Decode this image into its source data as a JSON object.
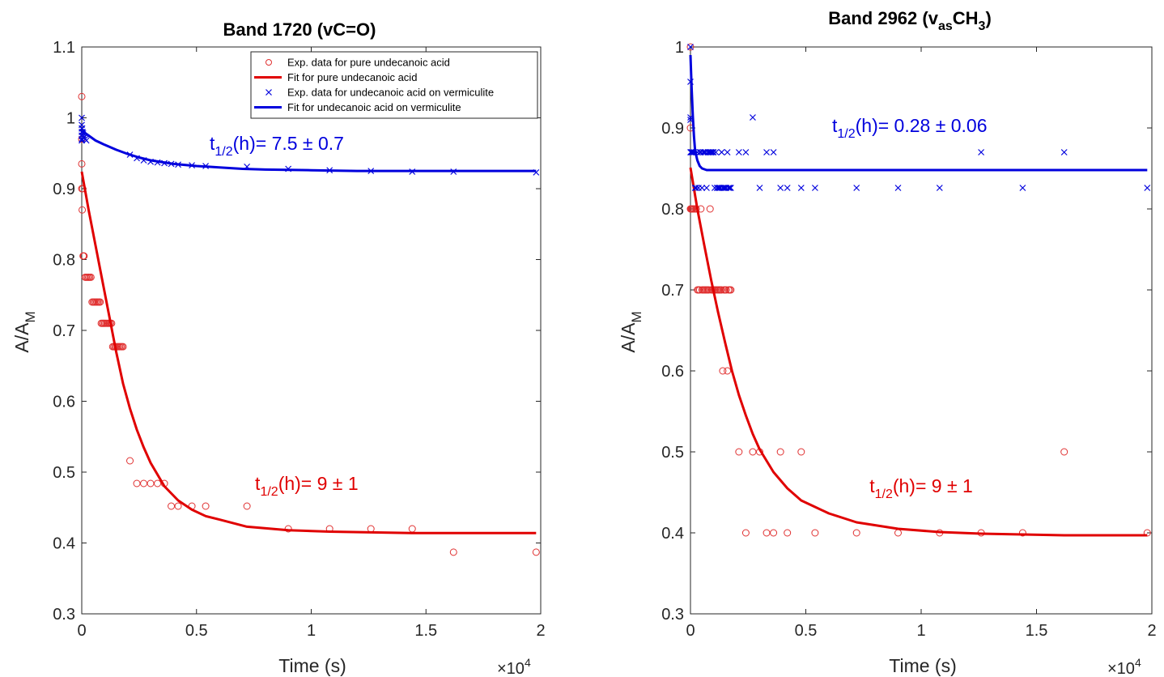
{
  "chart_data": [
    {
      "type": "scatter",
      "title": "Band 1720 (vC=O)",
      "xlabel": "Time (s)",
      "ylabel_main": "A/A",
      "ylabel_sub": "M",
      "x_exponent_label": "×10",
      "x_exponent": "4",
      "xlim": [
        0,
        20000
      ],
      "ylim": [
        0.3,
        1.1
      ],
      "xticks": [
        0,
        5000,
        10000,
        15000,
        20000
      ],
      "xtick_labels": [
        "0",
        "0.5",
        "1",
        "1.5",
        "2"
      ],
      "yticks": [
        0.3,
        0.4,
        0.5,
        0.6,
        0.7,
        0.8,
        0.9,
        1.0,
        1.1
      ],
      "ytick_labels": [
        "0.3",
        "0.4",
        "0.5",
        "0.6",
        "0.7",
        "0.8",
        "0.9",
        "1",
        "1.1"
      ],
      "grid": false,
      "legend_position": "top-right",
      "legend": [
        {
          "label": "Exp. data for pure undecanoic acid",
          "marker": "circle",
          "color": "#e03030"
        },
        {
          "label": "Fit for pure undecanoic acid",
          "marker": "line",
          "color": "#e00000"
        },
        {
          "label": "Exp. data for undecanoic acid on vermiculite",
          "marker": "cross",
          "color": "#0000dd"
        },
        {
          "label": "Fit for undecanoic acid on vermiculite",
          "marker": "line",
          "color": "#0000dd"
        }
      ],
      "series": [
        {
          "kind": "scatter-circle",
          "color": "#e03030",
          "x": [
            0,
            0,
            0,
            0,
            20,
            40,
            60,
            80,
            100,
            150,
            200,
            250,
            300,
            350,
            400,
            450,
            500,
            550,
            600,
            650,
            700,
            750,
            800,
            850,
            900,
            950,
            1000,
            1050,
            1100,
            1150,
            1200,
            1250,
            1300,
            1350,
            1400,
            1450,
            1500,
            1550,
            1600,
            1650,
            1700,
            1750,
            1800,
            2100,
            2400,
            2700,
            3000,
            3300,
            3600,
            3900,
            4200,
            4800,
            5400,
            7200,
            9000,
            10800,
            12600,
            14400,
            16200,
            19800
          ],
          "y": [
            1.03,
            0.97,
            0.935,
            0.9,
            0.87,
            0.9,
            0.805,
            0.805,
            0.805,
            0.775,
            0.775,
            0.775,
            0.775,
            0.775,
            0.775,
            0.74,
            0.74,
            0.74,
            0.74,
            0.74,
            0.74,
            0.74,
            0.74,
            0.71,
            0.71,
            0.71,
            0.71,
            0.71,
            0.71,
            0.71,
            0.71,
            0.71,
            0.71,
            0.677,
            0.677,
            0.677,
            0.677,
            0.677,
            0.677,
            0.677,
            0.677,
            0.677,
            0.677,
            0.516,
            0.484,
            0.484,
            0.484,
            0.484,
            0.484,
            0.452,
            0.452,
            0.452,
            0.452,
            0.452,
            0.42,
            0.42,
            0.42,
            0.42,
            0.387,
            0.387
          ]
        },
        {
          "kind": "line",
          "color": "#e00000",
          "x": [
            0,
            300,
            600,
            900,
            1200,
            1500,
            1800,
            2100,
            2400,
            2700,
            3000,
            3600,
            4200,
            4800,
            5400,
            6000,
            7200,
            9000,
            10800,
            12600,
            14400,
            16200,
            18000,
            19800
          ],
          "y": [
            0.924,
            0.87,
            0.82,
            0.77,
            0.72,
            0.67,
            0.625,
            0.59,
            0.56,
            0.535,
            0.513,
            0.48,
            0.46,
            0.447,
            0.438,
            0.433,
            0.423,
            0.418,
            0.416,
            0.415,
            0.414,
            0.414,
            0.414,
            0.414
          ]
        },
        {
          "kind": "scatter-cross",
          "color": "#0000dd",
          "x": [
            0,
            0,
            0,
            0,
            0,
            0,
            0,
            20,
            40,
            60,
            80,
            100,
            150,
            200,
            2100,
            2400,
            2700,
            3000,
            3300,
            3600,
            3900,
            4200,
            4800,
            5400,
            7200,
            9000,
            10800,
            12600,
            14400,
            16200,
            19800
          ],
          "y": [
            1.0,
            0.99,
            0.985,
            0.98,
            0.975,
            0.97,
            0.968,
            0.985,
            0.98,
            0.978,
            0.975,
            0.972,
            0.97,
            0.968,
            0.948,
            0.943,
            0.94,
            0.938,
            0.937,
            0.936,
            0.935,
            0.934,
            0.933,
            0.932,
            0.931,
            0.928,
            0.926,
            0.925,
            0.924,
            0.924,
            0.923
          ]
        },
        {
          "kind": "line",
          "color": "#0000dd",
          "x": [
            0,
            300,
            600,
            1000,
            1500,
            2000,
            2500,
            3000,
            4000,
            5000,
            6000,
            7000,
            8000,
            10000,
            12000,
            15000,
            19800
          ],
          "y": [
            0.982,
            0.975,
            0.968,
            0.962,
            0.955,
            0.949,
            0.944,
            0.94,
            0.935,
            0.932,
            0.93,
            0.928,
            0.927,
            0.926,
            0.925,
            0.925,
            0.925
          ]
        }
      ],
      "annotations": [
        {
          "pre": "t",
          "sub": "1/2",
          "post": "(h)= 7.5 ± 0.7",
          "color": "#0000dd",
          "x": 8500,
          "y": 0.955
        },
        {
          "pre": "t",
          "sub": "1/2",
          "post": "(h)= 9 ± 1",
          "color": "#e00000",
          "x": 9800,
          "y": 0.475
        }
      ]
    },
    {
      "type": "scatter",
      "title_pre": "Band 2962 (v",
      "title_sub": "as",
      "title_mid": "CH",
      "title_sub2": "3",
      "title_post": ")",
      "xlabel": "Time (s)",
      "ylabel_main": "A/A",
      "ylabel_sub": "M",
      "x_exponent_label": "×10",
      "x_exponent": "4",
      "xlim": [
        0,
        20000
      ],
      "ylim": [
        0.3,
        1.0
      ],
      "xticks": [
        0,
        5000,
        10000,
        15000,
        20000
      ],
      "xtick_labels": [
        "0",
        "0.5",
        "1",
        "1.5",
        "2"
      ],
      "yticks": [
        0.3,
        0.4,
        0.5,
        0.6,
        0.7,
        0.8,
        0.9,
        1.0
      ],
      "ytick_labels": [
        "0.3",
        "0.4",
        "0.5",
        "0.6",
        "0.7",
        "0.8",
        "0.9",
        "1"
      ],
      "grid": false,
      "series": [
        {
          "kind": "scatter-circle",
          "color": "#e03030",
          "x": [
            0,
            0,
            0,
            20,
            40,
            60,
            80,
            100,
            150,
            200,
            250,
            300,
            350,
            400,
            450,
            500,
            550,
            600,
            650,
            700,
            750,
            800,
            850,
            900,
            950,
            1000,
            1050,
            1100,
            1150,
            1200,
            1250,
            1300,
            1350,
            1400,
            1450,
            1500,
            1550,
            1600,
            1650,
            1700,
            1750,
            2100,
            2400,
            2700,
            3000,
            3300,
            3600,
            3900,
            4200,
            4800,
            5400,
            7200,
            9000,
            10800,
            12600,
            14400,
            16200,
            19800
          ],
          "y": [
            1.0,
            0.9,
            0.8,
            0.8,
            0.8,
            0.8,
            0.8,
            0.8,
            0.8,
            0.8,
            0.8,
            0.7,
            0.7,
            0.7,
            0.8,
            0.7,
            0.7,
            0.7,
            0.7,
            0.7,
            0.7,
            0.7,
            0.8,
            0.7,
            0.7,
            0.7,
            0.7,
            0.7,
            0.7,
            0.7,
            0.7,
            0.7,
            0.7,
            0.6,
            0.7,
            0.7,
            0.7,
            0.6,
            0.7,
            0.7,
            0.7,
            0.5,
            0.4,
            0.5,
            0.5,
            0.4,
            0.4,
            0.5,
            0.4,
            0.5,
            0.4,
            0.4,
            0.4,
            0.4,
            0.4,
            0.4,
            0.5,
            0.4
          ]
        },
        {
          "kind": "line",
          "color": "#e00000",
          "x": [
            0,
            300,
            600,
            900,
            1200,
            1500,
            1800,
            2100,
            2400,
            2700,
            3000,
            3600,
            4200,
            4800,
            5400,
            6000,
            7200,
            9000,
            10800,
            12600,
            14400,
            16200,
            18000,
            19800
          ],
          "y": [
            0.851,
            0.8,
            0.755,
            0.712,
            0.672,
            0.635,
            0.6,
            0.57,
            0.545,
            0.522,
            0.503,
            0.475,
            0.455,
            0.44,
            0.432,
            0.424,
            0.413,
            0.405,
            0.401,
            0.399,
            0.398,
            0.397,
            0.397,
            0.397
          ]
        },
        {
          "kind": "scatter-cross",
          "color": "#0000dd",
          "x": [
            0,
            0,
            0,
            0,
            0,
            30,
            60,
            100,
            150,
            200,
            250,
            300,
            350,
            400,
            450,
            500,
            550,
            600,
            650,
            700,
            750,
            800,
            850,
            900,
            950,
            1000,
            1050,
            1100,
            1150,
            1200,
            1250,
            1300,
            1350,
            1400,
            1450,
            1500,
            1550,
            1600,
            1650,
            1700,
            1750,
            2100,
            2400,
            2700,
            3000,
            3300,
            3600,
            3900,
            4200,
            4800,
            5400,
            7200,
            9000,
            10800,
            12600,
            14400,
            16200,
            19800
          ],
          "y": [
            1.0,
            0.957,
            0.913,
            0.91,
            0.87,
            0.87,
            0.87,
            0.87,
            0.87,
            0.826,
            0.826,
            0.87,
            0.826,
            0.87,
            0.87,
            0.826,
            0.87,
            0.87,
            0.87,
            0.826,
            0.87,
            0.87,
            0.87,
            0.87,
            0.87,
            0.87,
            0.826,
            0.87,
            0.826,
            0.826,
            0.826,
            0.826,
            0.87,
            0.826,
            0.826,
            0.826,
            0.826,
            0.87,
            0.826,
            0.826,
            0.826,
            0.87,
            0.87,
            0.913,
            0.826,
            0.87,
            0.87,
            0.826,
            0.826,
            0.826,
            0.826,
            0.826,
            0.826,
            0.826,
            0.87,
            0.826,
            0.87,
            0.826
          ]
        },
        {
          "kind": "line",
          "color": "#0000dd",
          "x": [
            0,
            50,
            100,
            150,
            200,
            300,
            400,
            500,
            700,
            1000,
            2000,
            5000,
            10000,
            15000,
            19800
          ],
          "y": [
            0.99,
            0.95,
            0.915,
            0.89,
            0.872,
            0.86,
            0.853,
            0.85,
            0.848,
            0.848,
            0.848,
            0.848,
            0.848,
            0.848,
            0.848
          ]
        }
      ],
      "annotations": [
        {
          "pre": "t",
          "sub": "1/2",
          "post": "(h)= 0.28 ± 0.06",
          "color": "#0000dd",
          "x": 9500,
          "y": 0.895
        },
        {
          "pre": "t",
          "sub": "1/2",
          "post": "(h)= 9 ± 1",
          "color": "#e00000",
          "x": 10000,
          "y": 0.45
        }
      ]
    }
  ]
}
